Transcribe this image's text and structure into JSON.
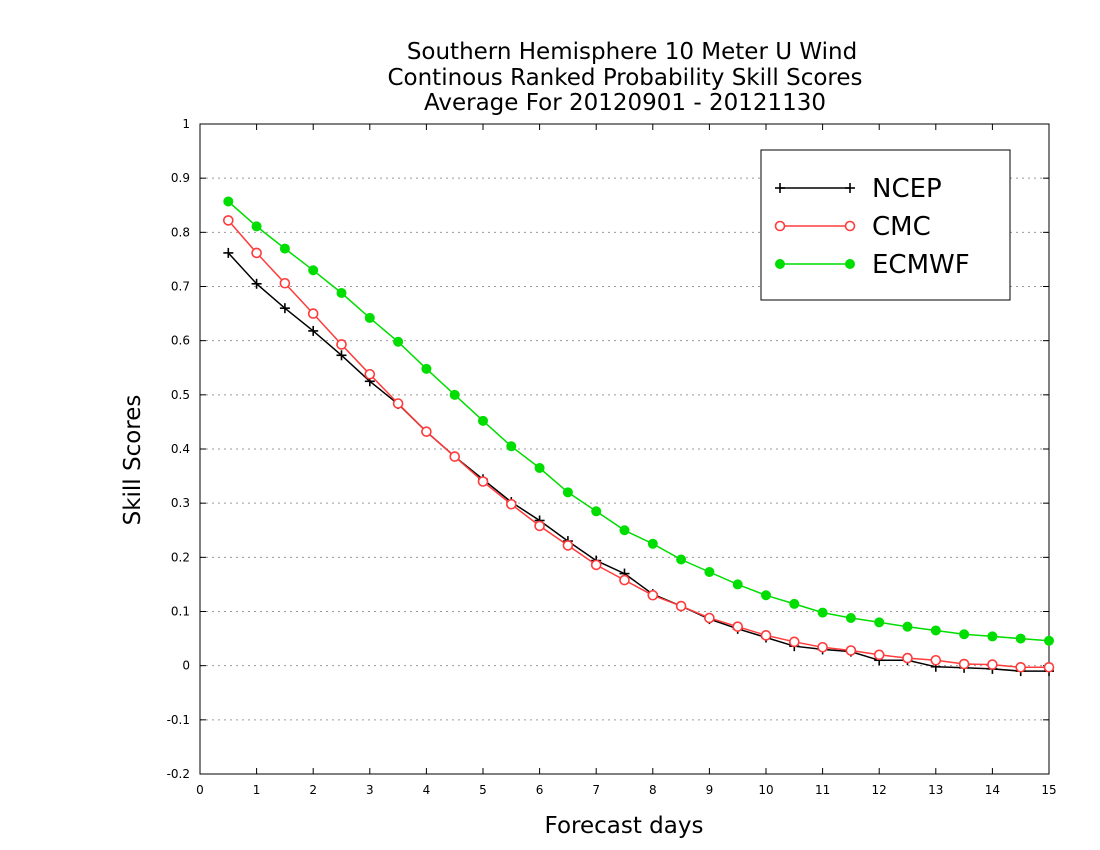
{
  "chart_data": {
    "type": "line",
    "title_lines": [
      "Southern Hemisphere 10 Meter U Wind",
      "Continous Ranked Probability Skill Scores",
      "Average For 20120901 - 20121130"
    ],
    "xlabel": "Forecast days",
    "ylabel": "Skill Scores",
    "xlim": [
      0,
      15
    ],
    "ylim": [
      -0.2,
      1
    ],
    "xticks": [
      0,
      1,
      2,
      3,
      4,
      5,
      6,
      7,
      8,
      9,
      10,
      11,
      12,
      13,
      14,
      15
    ],
    "yticks": [
      -0.2,
      -0.1,
      0,
      0.1,
      0.2,
      0.3,
      0.4,
      0.5,
      0.6,
      0.7,
      0.8,
      0.9,
      1
    ],
    "ytick_labels": [
      "-0.2",
      "-0.1",
      "0",
      "0.1",
      "0.2",
      "0.3",
      "0.4",
      "0.5",
      "0.6",
      "0.7",
      "0.8",
      "0.9",
      "1"
    ],
    "grid": "horizontal-dotted",
    "legend_position": "top-right",
    "x": [
      0.5,
      1,
      1.5,
      2,
      2.5,
      3,
      3.5,
      4,
      4.5,
      5,
      5.5,
      6,
      6.5,
      7,
      7.5,
      8,
      8.5,
      9,
      9.5,
      10,
      10.5,
      11,
      11.5,
      12,
      12.5,
      13,
      13.5,
      14,
      14.5,
      15
    ],
    "series": [
      {
        "name": "NCEP",
        "color": "#000000",
        "marker": "plus",
        "values": [
          0.762,
          0.705,
          0.66,
          0.618,
          0.573,
          0.525,
          0.483,
          0.432,
          0.386,
          0.344,
          0.302,
          0.268,
          0.23,
          0.194,
          0.17,
          0.132,
          0.11,
          0.086,
          0.068,
          0.052,
          0.036,
          0.03,
          0.026,
          0.01,
          0.01,
          -0.002,
          -0.004,
          -0.006,
          -0.01,
          -0.01
        ]
      },
      {
        "name": "CMC",
        "color": "#ff3b3b",
        "marker": "open-circle",
        "values": [
          0.822,
          0.762,
          0.706,
          0.65,
          0.593,
          0.538,
          0.484,
          0.432,
          0.386,
          0.34,
          0.298,
          0.258,
          0.222,
          0.186,
          0.158,
          0.13,
          0.11,
          0.088,
          0.072,
          0.056,
          0.044,
          0.034,
          0.028,
          0.02,
          0.014,
          0.01,
          0.003,
          0.002,
          -0.003,
          -0.003
        ]
      },
      {
        "name": "ECMWF",
        "color": "#00dd00",
        "marker": "filled-circle",
        "values": [
          0.857,
          0.811,
          0.77,
          0.73,
          0.688,
          0.642,
          0.598,
          0.548,
          0.5,
          0.452,
          0.405,
          0.365,
          0.32,
          0.285,
          0.25,
          0.225,
          0.196,
          0.173,
          0.15,
          0.13,
          0.114,
          0.098,
          0.088,
          0.08,
          0.072,
          0.065,
          0.058,
          0.054,
          0.05,
          0.046
        ]
      }
    ]
  }
}
